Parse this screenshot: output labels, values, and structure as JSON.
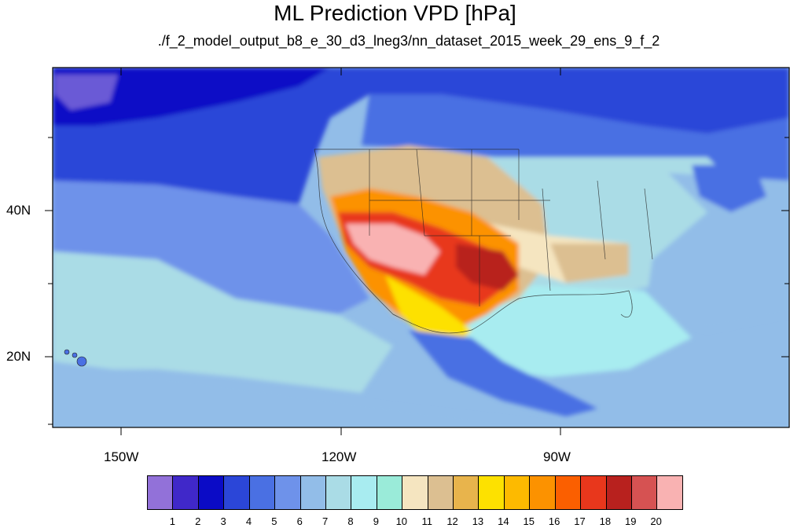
{
  "title": "ML Prediction VPD [hPa]",
  "subtitle": "./f_2_model_output_b8_e_30_d3_lneg3/nn_dataset_2015_week_29_ens_9_f_2",
  "axes": {
    "lat_labels": [
      "40N",
      "20N"
    ],
    "lon_labels": [
      "150W",
      "120W",
      "90W"
    ]
  },
  "map": {
    "region": "North America and Eastern Pacific",
    "lon_range": [
      -160,
      -60
    ],
    "lat_range": [
      10,
      60
    ]
  },
  "colorbar": {
    "labels": [
      "1",
      "2",
      "3",
      "4",
      "5",
      "6",
      "7",
      "8",
      "9",
      "10",
      "11",
      "12",
      "13",
      "14",
      "15",
      "16",
      "17",
      "18",
      "19",
      "20"
    ],
    "colors": [
      "#9271d9",
      "#4028c9",
      "#0b0bc6",
      "#2b46d8",
      "#4a70e3",
      "#6e92ea",
      "#92bde8",
      "#aadce6",
      "#a8ecf0",
      "#9aebd9",
      "#f5e5c0",
      "#dcbf91",
      "#e8b44c",
      "#fde100",
      "#fdba00",
      "#fc9200",
      "#fb5f00",
      "#e8371c",
      "#b8211e",
      "#d65252",
      "#f9b2b2"
    ]
  }
}
